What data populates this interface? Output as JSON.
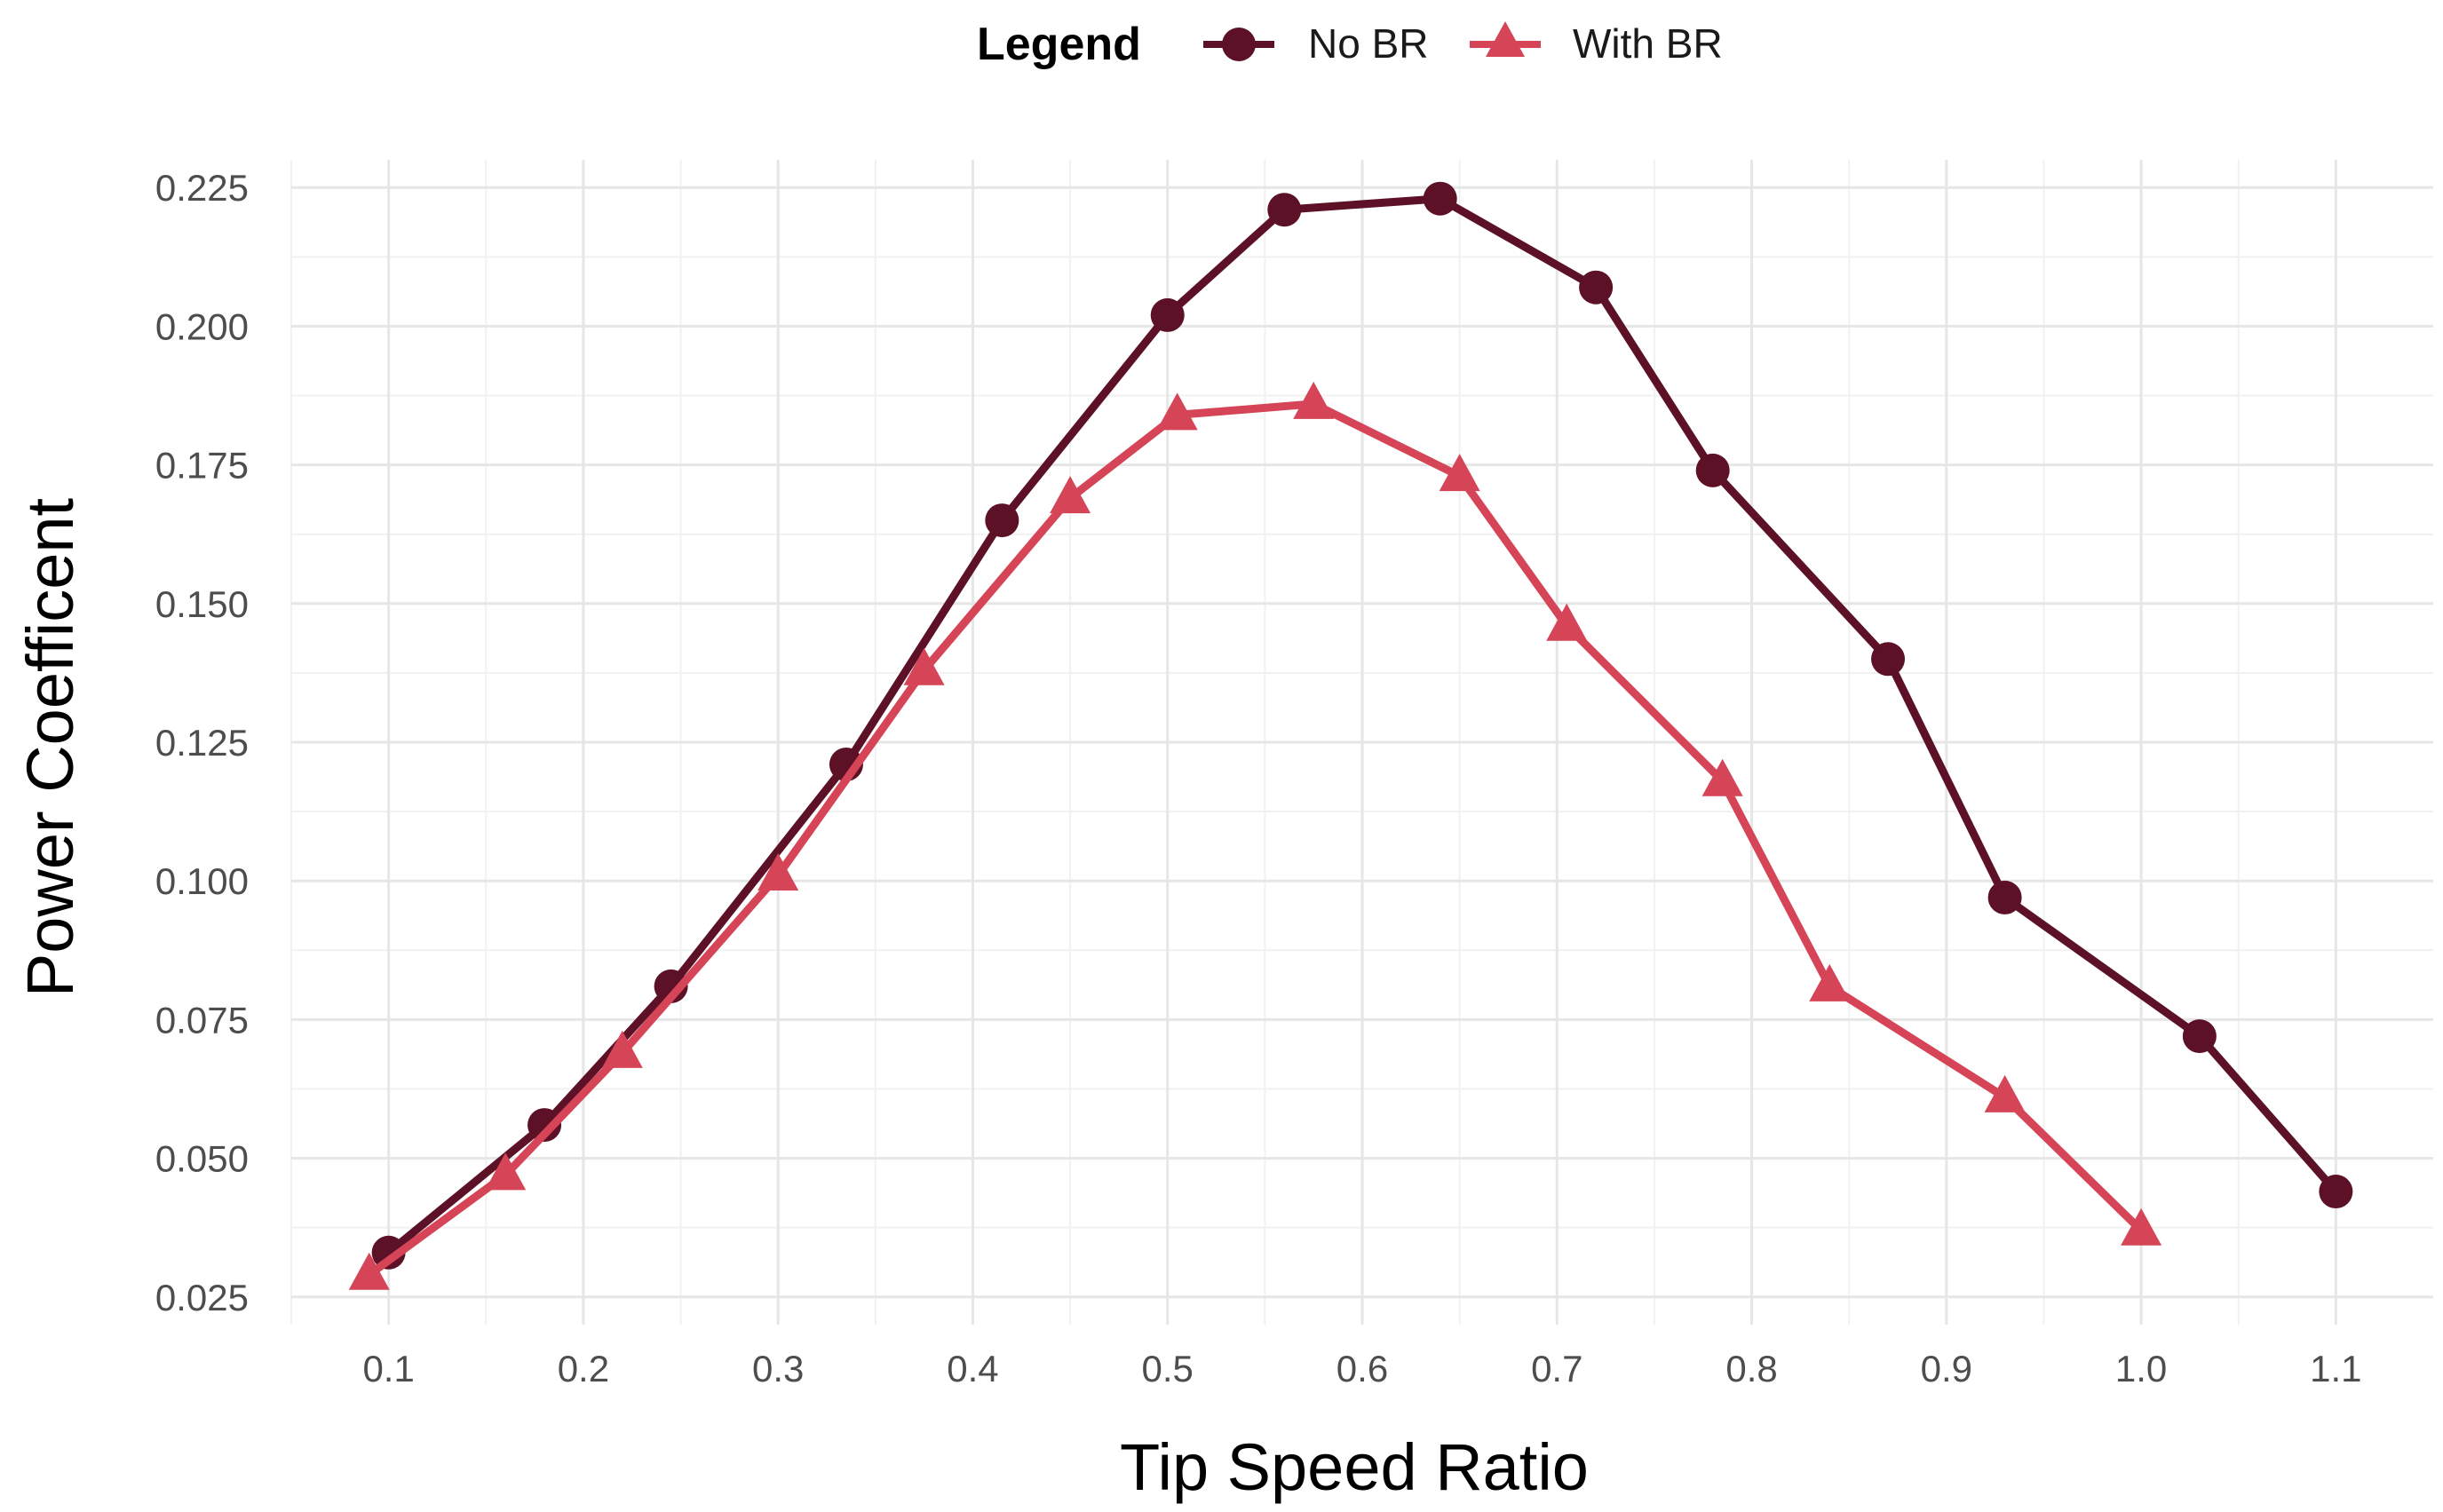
{
  "chart_data": {
    "type": "line",
    "title": "",
    "xlabel": "Tip Speed Ratio",
    "ylabel": "Power Coefficent",
    "xlim": [
      0.05,
      1.15
    ],
    "ylim": [
      0.02,
      0.23
    ],
    "x_ticks": [
      "0.1",
      "0.2",
      "0.3",
      "0.4",
      "0.5",
      "0.6",
      "0.7",
      "0.8",
      "0.9",
      "1.0",
      "1.1"
    ],
    "x_tick_values": [
      0.1,
      0.2,
      0.3,
      0.4,
      0.5,
      0.6,
      0.7,
      0.8,
      0.9,
      1.0,
      1.1
    ],
    "y_ticks": [
      "0.025",
      "0.050",
      "0.075",
      "0.100",
      "0.125",
      "0.150",
      "0.175",
      "0.200",
      "0.225"
    ],
    "y_tick_values": [
      0.025,
      0.05,
      0.075,
      0.1,
      0.125,
      0.15,
      0.175,
      0.2,
      0.225
    ],
    "grid": true,
    "legend": {
      "title": "Legend",
      "placement": "top"
    },
    "series": [
      {
        "name": "No BR",
        "marker": "circle",
        "color": "#5c1127",
        "x": [
          0.1,
          0.18,
          0.245,
          0.335,
          0.415,
          0.5,
          0.56,
          0.64,
          0.72,
          0.78,
          0.87,
          0.93,
          1.03,
          1.1
        ],
        "y": [
          0.033,
          0.056,
          0.081,
          0.121,
          0.165,
          0.202,
          0.221,
          0.223,
          0.207,
          0.174,
          0.14,
          0.097,
          0.072,
          0.044
        ]
      },
      {
        "name": "With BR",
        "marker": "triangle",
        "color": "#d64457",
        "x": [
          0.09,
          0.16,
          0.22,
          0.3,
          0.375,
          0.45,
          0.505,
          0.575,
          0.65,
          0.705,
          0.785,
          0.84,
          0.93,
          1.0
        ],
        "y": [
          0.029,
          0.047,
          0.069,
          0.101,
          0.138,
          0.169,
          0.184,
          0.186,
          0.173,
          0.146,
          0.118,
          0.081,
          0.061,
          0.037
        ]
      }
    ]
  }
}
